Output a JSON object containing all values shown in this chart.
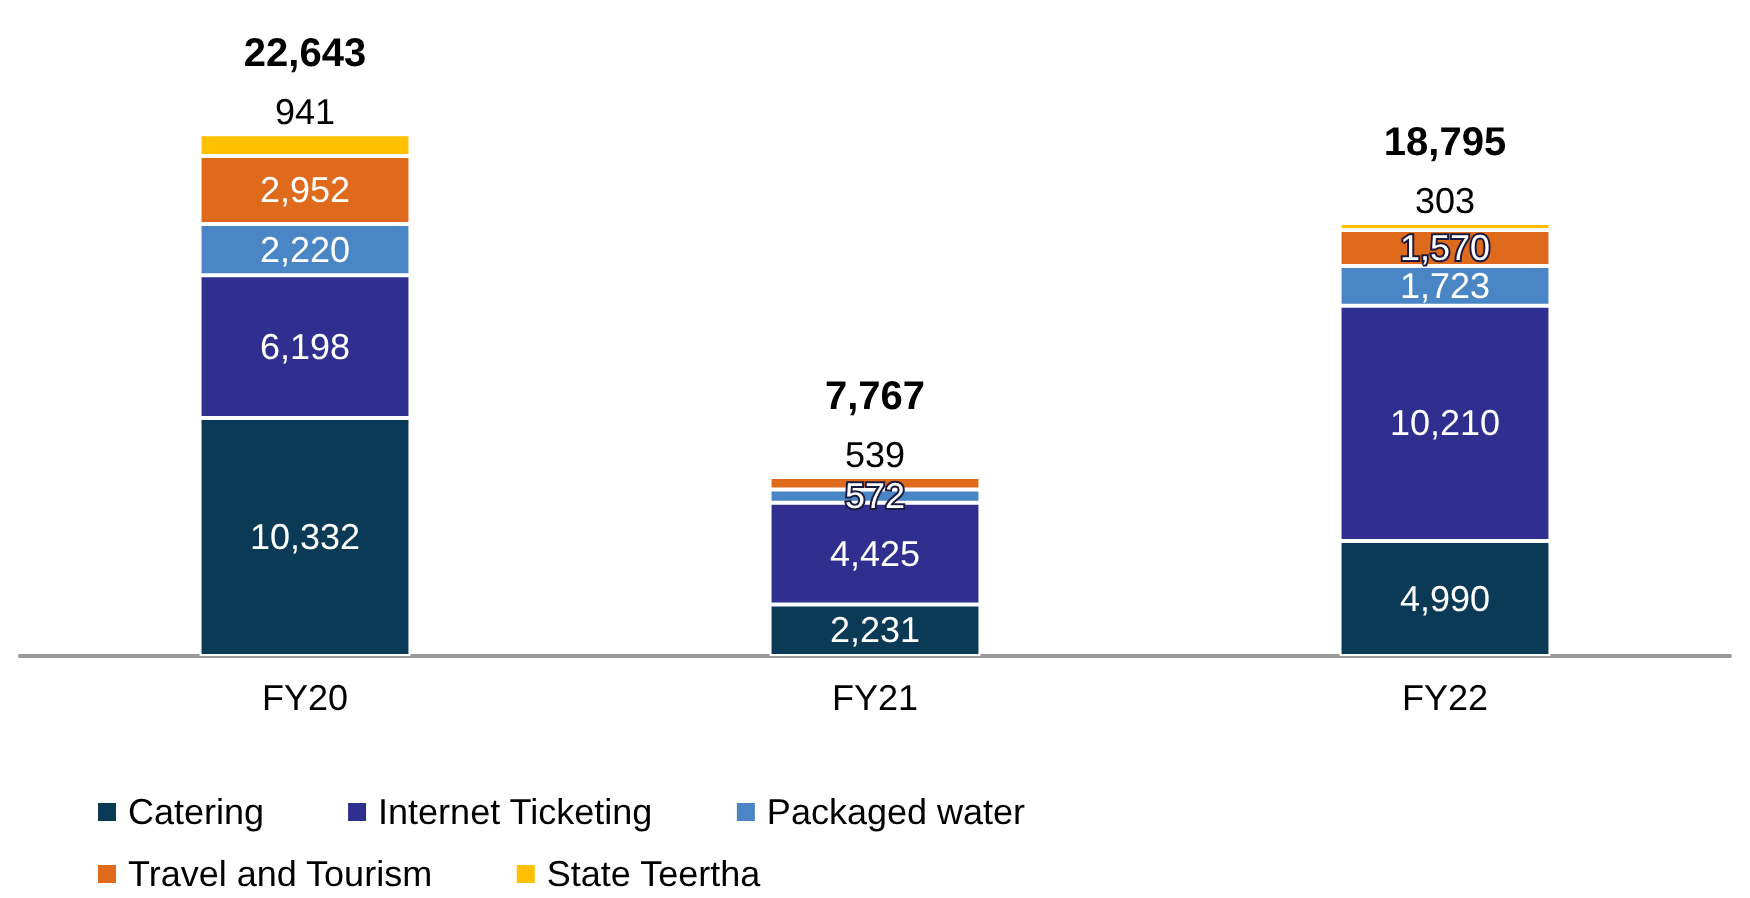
{
  "chart_data": {
    "type": "bar",
    "stacked": true,
    "legend": "bottom",
    "categories": [
      "FY20",
      "FY21",
      "FY22"
    ],
    "series": [
      {
        "name": "Catering",
        "color": "#0b3a56",
        "values": [
          10332,
          2231,
          4990
        ],
        "value_labels": [
          "10,332",
          "2,231",
          "4,990"
        ]
      },
      {
        "name": "Internet Ticketing",
        "color": "#2e2f8f",
        "values": [
          6198,
          4425,
          10210
        ],
        "value_labels": [
          "6,198",
          "4,425",
          "10,210"
        ]
      },
      {
        "name": "Packaged water",
        "color": "#4a86c5",
        "values": [
          2220,
          572,
          1723
        ],
        "value_labels": [
          "2,220",
          "572",
          "1,723"
        ]
      },
      {
        "name": "Travel and Tourism",
        "color": "#e06a1b",
        "values": [
          2952,
          539,
          1570
        ],
        "value_labels": [
          "2,952",
          "539",
          "1,570"
        ]
      },
      {
        "name": "State Teertha",
        "color": "#ffc000",
        "values": [
          941,
          null,
          303
        ],
        "value_labels": [
          "941",
          null,
          "303"
        ]
      }
    ],
    "totals": [
      "22,643",
      "7,767",
      "18,795"
    ]
  }
}
